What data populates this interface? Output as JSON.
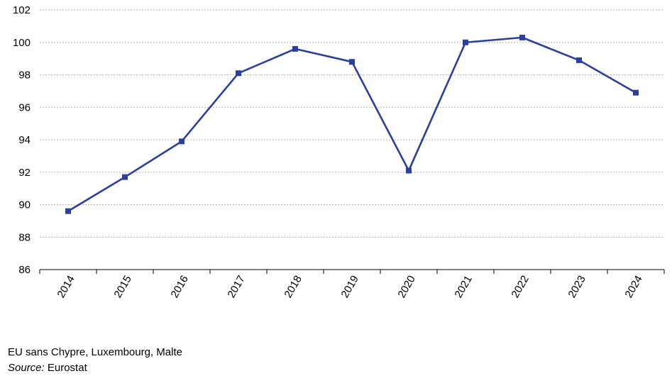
{
  "chart_data": {
    "type": "line",
    "title": "",
    "xlabel": "",
    "ylabel": "",
    "x": [
      "2014",
      "2015",
      "2016",
      "2017",
      "2018",
      "2019",
      "2020",
      "2021",
      "2022",
      "2023",
      "2024"
    ],
    "series": [
      {
        "values": [
          89.6,
          91.7,
          93.9,
          98.1,
          99.6,
          98.8,
          92.1,
          100.0,
          100.3,
          98.9,
          96.9
        ],
        "color": "#2b3f9e",
        "marker": "square"
      }
    ],
    "ylim": [
      86,
      102
    ],
    "yticks": [
      86,
      88,
      90,
      92,
      94,
      96,
      98,
      100,
      102
    ],
    "grid": "horizontal-dashed",
    "legend": "none"
  },
  "footnote": {
    "note": "EU sans Chypre, Luxembourg, Malte",
    "source_label": "Source:",
    "source_value": " Eurostat"
  }
}
